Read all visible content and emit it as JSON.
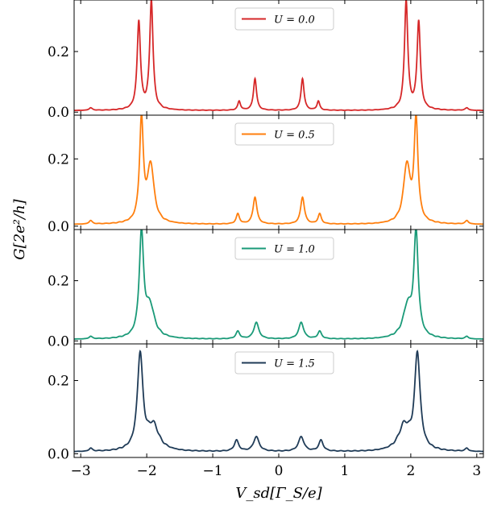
{
  "chart_data": {
    "type": "line",
    "layout": "4 vertically stacked panels, shared x axis",
    "xlabel": "V_sd[Γ_S/e]",
    "ylabel": "G[2e²/h]",
    "xlim": [
      -3.1,
      3.1
    ],
    "x_ticks": [
      -3,
      -2,
      -1,
      0,
      1,
      2,
      3
    ],
    "x_tick_labels": [
      "−3",
      "−2",
      "−1",
      "0",
      "1",
      "2",
      "3"
    ],
    "grid": false,
    "legend_position": "upper-center",
    "panels": [
      {
        "legend": "U = 0.0",
        "color": "#d62728",
        "ylim": [
          -0.01,
          0.37
        ],
        "y_ticks": [
          0.0,
          0.2
        ],
        "y_tick_labels": [
          "0.0",
          "0.2"
        ],
        "baseline": 0.005,
        "ripple": 0.004,
        "peaks": [
          {
            "x": -2.85,
            "height": 0.008,
            "width": 0.03
          },
          {
            "x": -2.12,
            "height": 0.29,
            "width": 0.03
          },
          {
            "x": -1.93,
            "height": 0.36,
            "width": 0.03
          },
          {
            "x": -0.6,
            "height": 0.03,
            "width": 0.025
          },
          {
            "x": -0.36,
            "height": 0.105,
            "width": 0.028
          },
          {
            "x": 0.36,
            "height": 0.105,
            "width": 0.028
          },
          {
            "x": 0.6,
            "height": 0.03,
            "width": 0.025
          },
          {
            "x": 1.93,
            "height": 0.36,
            "width": 0.03
          },
          {
            "x": 2.12,
            "height": 0.29,
            "width": 0.03
          },
          {
            "x": 2.85,
            "height": 0.008,
            "width": 0.03
          }
        ]
      },
      {
        "legend": "U = 0.5",
        "color": "#ff7f0e",
        "ylim": [
          -0.01,
          0.33
        ],
        "y_ticks": [
          0.0,
          0.2
        ],
        "y_tick_labels": [
          "0.0",
          "0.2"
        ],
        "baseline": 0.005,
        "ripple": 0.004,
        "peaks": [
          {
            "x": -2.85,
            "height": 0.01,
            "width": 0.03
          },
          {
            "x": -2.08,
            "height": 0.3,
            "width": 0.035
          },
          {
            "x": -1.94,
            "height": 0.17,
            "width": 0.06
          },
          {
            "x": -0.62,
            "height": 0.03,
            "width": 0.03
          },
          {
            "x": -0.36,
            "height": 0.08,
            "width": 0.035
          },
          {
            "x": 0.36,
            "height": 0.08,
            "width": 0.035
          },
          {
            "x": 0.62,
            "height": 0.03,
            "width": 0.03
          },
          {
            "x": 1.94,
            "height": 0.17,
            "width": 0.06
          },
          {
            "x": 2.08,
            "height": 0.3,
            "width": 0.035
          },
          {
            "x": 2.85,
            "height": 0.01,
            "width": 0.03
          }
        ]
      },
      {
        "legend": "U = 1.0",
        "color": "#1a9a78",
        "ylim": [
          -0.01,
          0.37
        ],
        "y_ticks": [
          0.0,
          0.2
        ],
        "y_tick_labels": [
          "0.0",
          "0.2"
        ],
        "baseline": 0.005,
        "ripple": 0.005,
        "peaks": [
          {
            "x": -2.85,
            "height": 0.008,
            "width": 0.03
          },
          {
            "x": -2.08,
            "height": 0.34,
            "width": 0.04
          },
          {
            "x": -1.95,
            "height": 0.1,
            "width": 0.08
          },
          {
            "x": -0.62,
            "height": 0.025,
            "width": 0.035
          },
          {
            "x": -0.34,
            "height": 0.055,
            "width": 0.045
          },
          {
            "x": 0.34,
            "height": 0.055,
            "width": 0.045
          },
          {
            "x": 0.62,
            "height": 0.025,
            "width": 0.035
          },
          {
            "x": 1.95,
            "height": 0.1,
            "width": 0.08
          },
          {
            "x": 2.08,
            "height": 0.34,
            "width": 0.04
          },
          {
            "x": 2.85,
            "height": 0.008,
            "width": 0.03
          }
        ]
      },
      {
        "legend": "U = 1.5",
        "color": "#1f3b57",
        "ylim": [
          -0.01,
          0.3
        ],
        "y_ticks": [
          0.0,
          0.2
        ],
        "y_tick_labels": [
          "0.0",
          "0.2"
        ],
        "baseline": 0.005,
        "ripple": 0.006,
        "peaks": [
          {
            "x": -2.85,
            "height": 0.008,
            "width": 0.03
          },
          {
            "x": -2.1,
            "height": 0.26,
            "width": 0.05
          },
          {
            "x": -1.9,
            "height": 0.065,
            "width": 0.1
          },
          {
            "x": -0.64,
            "height": 0.03,
            "width": 0.04
          },
          {
            "x": -0.34,
            "height": 0.04,
            "width": 0.05
          },
          {
            "x": 0.34,
            "height": 0.04,
            "width": 0.05
          },
          {
            "x": 0.64,
            "height": 0.03,
            "width": 0.04
          },
          {
            "x": 1.9,
            "height": 0.065,
            "width": 0.1
          },
          {
            "x": 2.1,
            "height": 0.26,
            "width": 0.05
          },
          {
            "x": 2.85,
            "height": 0.008,
            "width": 0.03
          }
        ]
      }
    ]
  }
}
